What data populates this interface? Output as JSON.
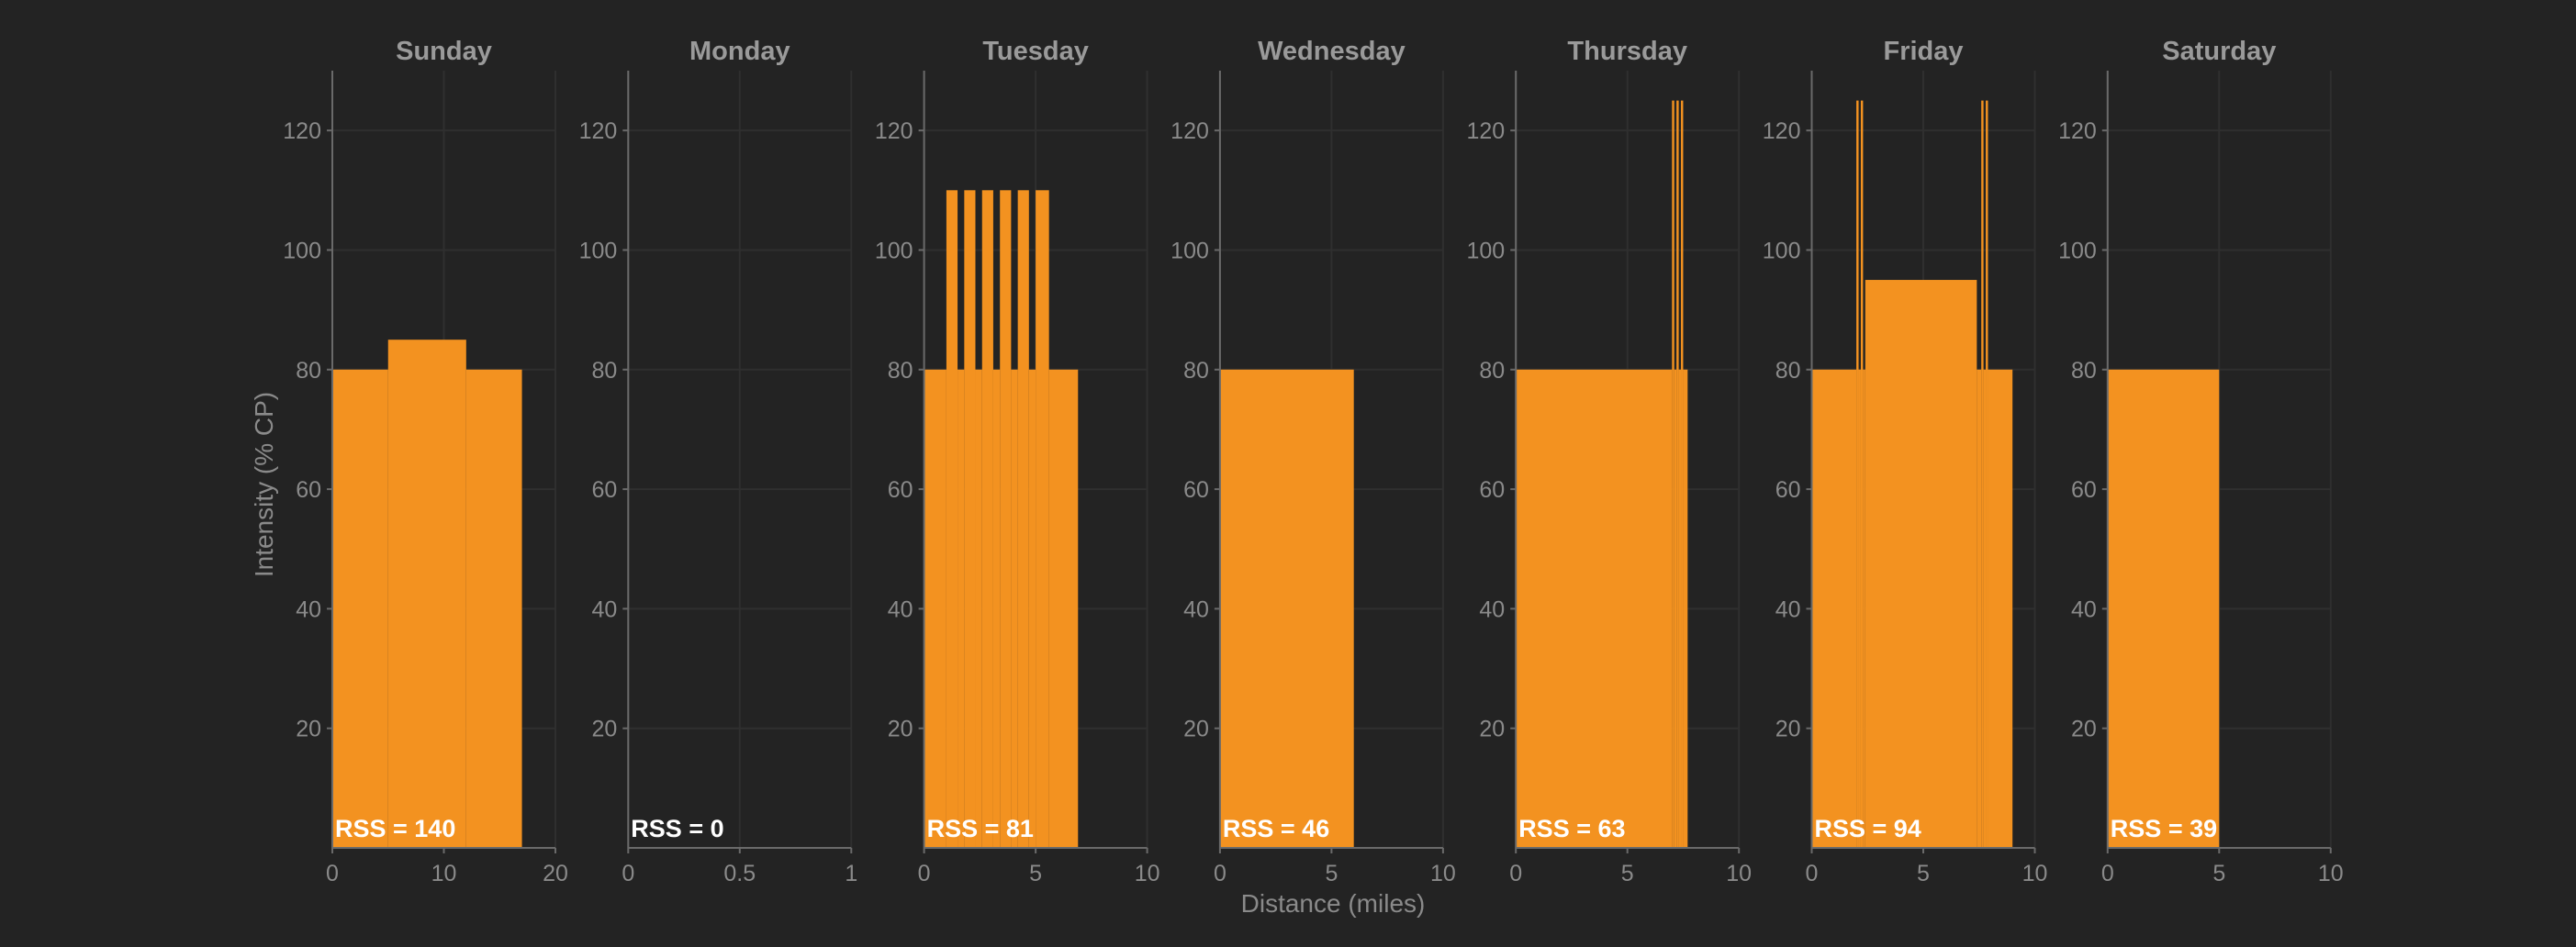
{
  "chart_data": {
    "type": "bar",
    "ylabel": "Intensity (% CP)",
    "xlabel": "Distance (miles)",
    "ylim": [
      0,
      130
    ],
    "yticks": [
      20,
      40,
      60,
      80,
      100,
      120
    ],
    "grid": true,
    "bar_color": "#f39220",
    "background": "#232323",
    "panels": [
      {
        "title": "Sunday",
        "xlim": [
          0,
          20
        ],
        "xticks": [
          0,
          10,
          20
        ],
        "xtick_labels": [
          "0",
          "10",
          "20"
        ],
        "rss_label": "RSS = 140",
        "segments": [
          {
            "x0": 0,
            "x1": 5,
            "y": 80
          },
          {
            "x0": 5,
            "x1": 12,
            "y": 85
          },
          {
            "x0": 12,
            "x1": 17,
            "y": 80
          }
        ]
      },
      {
        "title": "Monday",
        "xlim": [
          0,
          1
        ],
        "xticks": [
          0,
          0.5,
          1
        ],
        "xtick_labels": [
          "0",
          "0.5",
          "1"
        ],
        "rss_label": "RSS = 0",
        "segments": []
      },
      {
        "title": "Tuesday",
        "xlim": [
          0,
          10
        ],
        "xticks": [
          0,
          5,
          10
        ],
        "xtick_labels": [
          "0",
          "5",
          "10"
        ],
        "rss_label": "RSS = 81",
        "segments": [
          {
            "x0": 0,
            "x1": 1.0,
            "y": 80
          },
          {
            "x0": 1.0,
            "x1": 1.5,
            "y": 110
          },
          {
            "x0": 1.5,
            "x1": 1.8,
            "y": 80
          },
          {
            "x0": 1.8,
            "x1": 2.3,
            "y": 110
          },
          {
            "x0": 2.3,
            "x1": 2.6,
            "y": 80
          },
          {
            "x0": 2.6,
            "x1": 3.1,
            "y": 110
          },
          {
            "x0": 3.1,
            "x1": 3.4,
            "y": 80
          },
          {
            "x0": 3.4,
            "x1": 3.9,
            "y": 110
          },
          {
            "x0": 3.9,
            "x1": 4.2,
            "y": 80
          },
          {
            "x0": 4.2,
            "x1": 4.7,
            "y": 110
          },
          {
            "x0": 4.7,
            "x1": 5.0,
            "y": 80
          },
          {
            "x0": 5.0,
            "x1": 5.6,
            "y": 110
          },
          {
            "x0": 5.6,
            "x1": 6.9,
            "y": 80
          }
        ]
      },
      {
        "title": "Wednesday",
        "xlim": [
          0,
          10
        ],
        "xticks": [
          0,
          5,
          10
        ],
        "xtick_labels": [
          "0",
          "5",
          "10"
        ],
        "rss_label": "RSS = 46",
        "segments": [
          {
            "x0": 0,
            "x1": 6,
            "y": 80
          }
        ]
      },
      {
        "title": "Thursday",
        "xlim": [
          0,
          10
        ],
        "xticks": [
          0,
          5,
          10
        ],
        "xtick_labels": [
          "0",
          "5",
          "10"
        ],
        "rss_label": "RSS = 63",
        "segments": [
          {
            "x0": 0,
            "x1": 7.0,
            "y": 80
          },
          {
            "x0": 7.0,
            "x1": 7.1,
            "y": 125
          },
          {
            "x0": 7.1,
            "x1": 7.2,
            "y": 80
          },
          {
            "x0": 7.2,
            "x1": 7.3,
            "y": 125
          },
          {
            "x0": 7.3,
            "x1": 7.4,
            "y": 80
          },
          {
            "x0": 7.4,
            "x1": 7.5,
            "y": 125
          },
          {
            "x0": 7.5,
            "x1": 7.7,
            "y": 80
          }
        ]
      },
      {
        "title": "Friday",
        "xlim": [
          0,
          10
        ],
        "xticks": [
          0,
          5,
          10
        ],
        "xtick_labels": [
          "0",
          "5",
          "10"
        ],
        "rss_label": "RSS = 94",
        "segments": [
          {
            "x0": 0,
            "x1": 2.0,
            "y": 80
          },
          {
            "x0": 2.0,
            "x1": 2.1,
            "y": 125
          },
          {
            "x0": 2.1,
            "x1": 2.2,
            "y": 80
          },
          {
            "x0": 2.2,
            "x1": 2.3,
            "y": 125
          },
          {
            "x0": 2.3,
            "x1": 2.4,
            "y": 80
          },
          {
            "x0": 2.4,
            "x1": 7.4,
            "y": 95
          },
          {
            "x0": 7.4,
            "x1": 7.6,
            "y": 80
          },
          {
            "x0": 7.6,
            "x1": 7.7,
            "y": 125
          },
          {
            "x0": 7.7,
            "x1": 7.8,
            "y": 80
          },
          {
            "x0": 7.8,
            "x1": 7.9,
            "y": 125
          },
          {
            "x0": 7.9,
            "x1": 9.0,
            "y": 80
          }
        ]
      },
      {
        "title": "Saturday",
        "xlim": [
          0,
          10
        ],
        "xticks": [
          0,
          5,
          10
        ],
        "xtick_labels": [
          "0",
          "5",
          "10"
        ],
        "rss_label": "RSS = 39",
        "segments": [
          {
            "x0": 0,
            "x1": 5,
            "y": 80
          }
        ]
      }
    ]
  }
}
